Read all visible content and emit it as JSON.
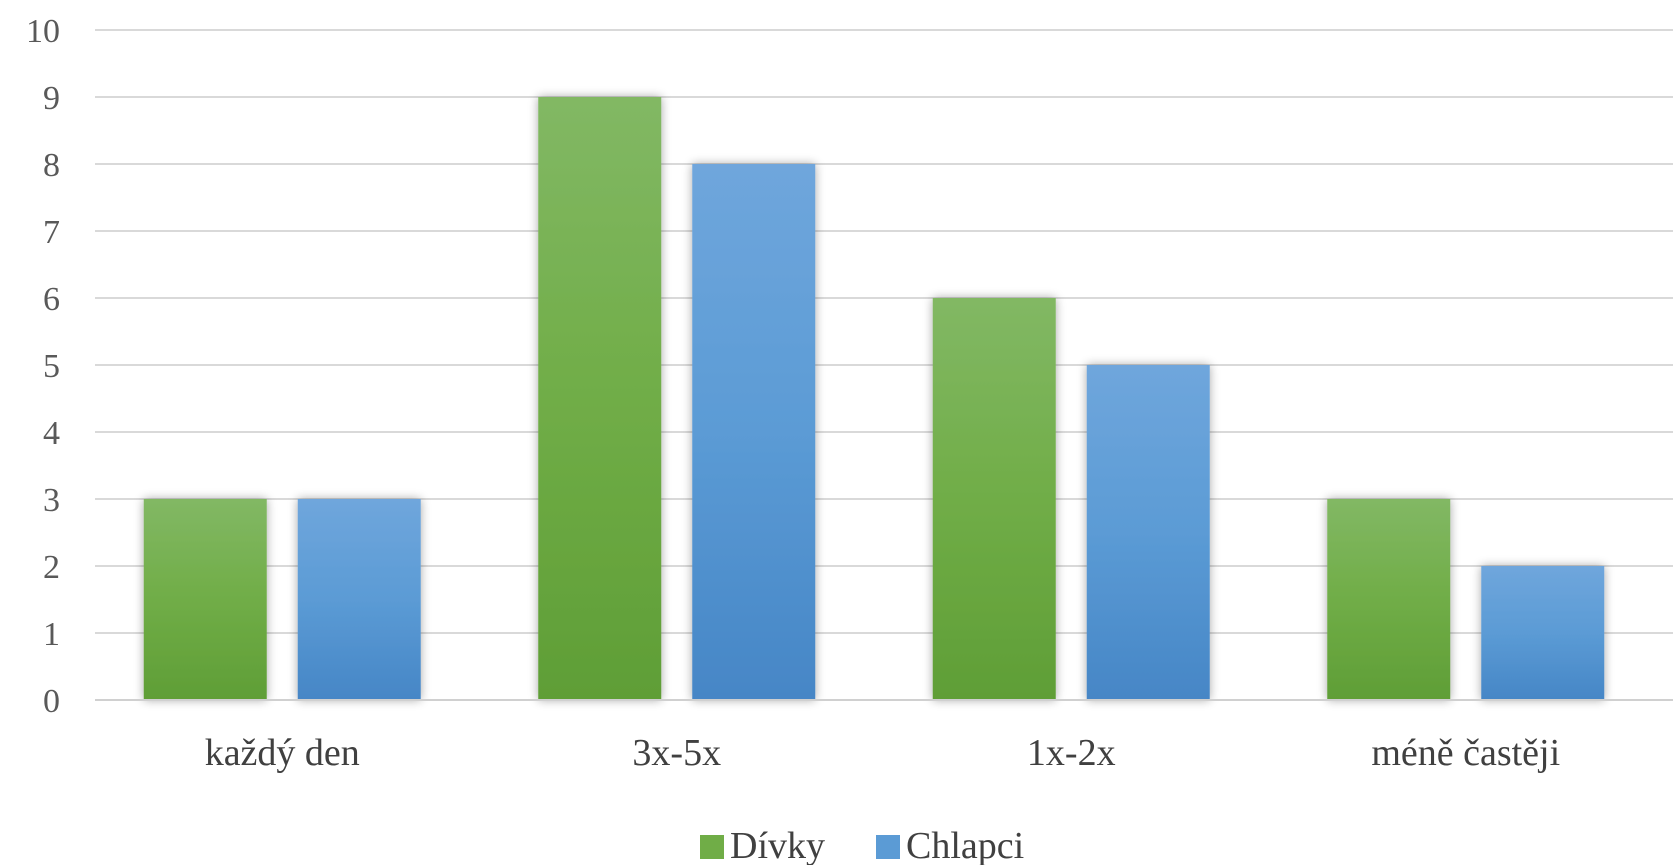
{
  "chart_data": {
    "type": "bar",
    "categories": [
      "každý den",
      "3x-5x",
      "1x-2x",
      "méně častěji"
    ],
    "series": [
      {
        "name": "Dívky",
        "values": [
          3,
          9,
          6,
          3
        ],
        "color": "#70ad47"
      },
      {
        "name": "Chlapci",
        "values": [
          3,
          8,
          5,
          2
        ],
        "color": "#5b9bd5"
      }
    ],
    "ylim": [
      0,
      10
    ],
    "yticks": [
      "0",
      "1",
      "2",
      "3",
      "4",
      "5",
      "6",
      "7",
      "8",
      "9",
      "10"
    ],
    "grid": true,
    "legend": "bottom"
  }
}
